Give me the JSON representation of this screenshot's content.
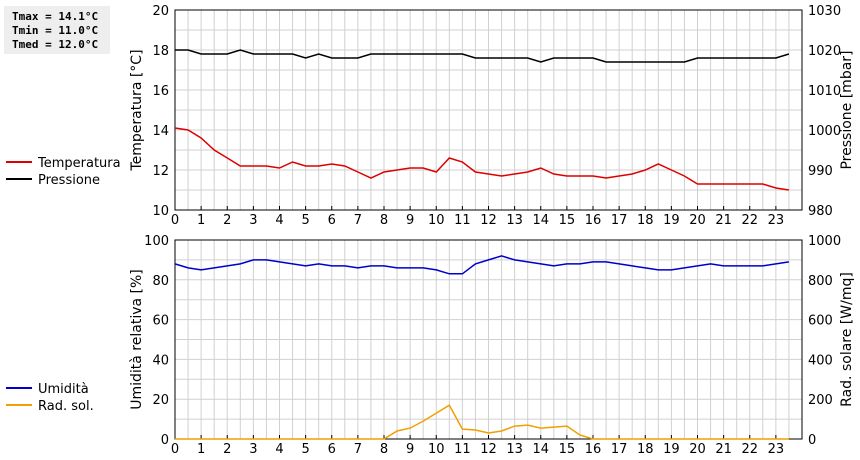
{
  "stats": {
    "tmax": "Tmax = 14.1°C",
    "tmin": "Tmin = 11.0°C",
    "tmed": "Tmed = 12.0°C"
  },
  "colors": {
    "temperature": "#dd0000",
    "pressure": "#000000",
    "humidity": "#0000cc",
    "radiation": "#f0a000",
    "grid": "#d0d0d0"
  },
  "chart_data": [
    {
      "type": "line",
      "xlim": [
        0,
        24
      ],
      "xticks": [
        "0",
        "1",
        "2",
        "3",
        "4",
        "5",
        "6",
        "7",
        "8",
        "9",
        "10",
        "11",
        "12",
        "13",
        "14",
        "15",
        "16",
        "17",
        "18",
        "19",
        "20",
        "21",
        "22",
        "23"
      ],
      "grid": true,
      "legend_position": "left",
      "ylabel": "Temperatura [°C]",
      "ylim": [
        10,
        20
      ],
      "yticks": [
        "10",
        "12",
        "14",
        "16",
        "18",
        "20"
      ],
      "y2label": "Pressione [mbar]",
      "y2lim": [
        980,
        1030
      ],
      "y2ticks": [
        "980",
        "990",
        "1000",
        "1010",
        "1020",
        "1030"
      ],
      "series": [
        {
          "name": "Temperatura",
          "axis": "left",
          "color": "#dd0000",
          "x": [
            0,
            0.5,
            1,
            1.5,
            2,
            2.5,
            3,
            3.5,
            4,
            4.5,
            5,
            5.5,
            6,
            6.5,
            7,
            7.5,
            8,
            8.5,
            9,
            9.5,
            10,
            10.5,
            11,
            11.5,
            12,
            12.5,
            13,
            13.5,
            14,
            14.5,
            15,
            15.5,
            16,
            16.5,
            17,
            17.5,
            18,
            18.5,
            19,
            19.5,
            20,
            20.5,
            21,
            21.5,
            22,
            22.5,
            23,
            23.5
          ],
          "values": [
            14.1,
            14.0,
            13.6,
            13.0,
            12.6,
            12.2,
            12.2,
            12.2,
            12.1,
            12.4,
            12.2,
            12.2,
            12.3,
            12.2,
            11.9,
            11.6,
            11.9,
            12.0,
            12.1,
            12.1,
            11.9,
            12.6,
            12.4,
            11.9,
            11.8,
            11.7,
            11.8,
            11.9,
            12.1,
            11.8,
            11.7,
            11.7,
            11.7,
            11.6,
            11.7,
            11.8,
            12.0,
            12.3,
            12.0,
            11.7,
            11.3,
            11.3,
            11.3,
            11.3,
            11.3,
            11.3,
            11.1,
            11.0
          ]
        },
        {
          "name": "Pressione",
          "axis": "right",
          "color": "#000000",
          "x": [
            0,
            0.5,
            1,
            1.5,
            2,
            2.5,
            3,
            3.5,
            4,
            4.5,
            5,
            5.5,
            6,
            6.5,
            7,
            7.5,
            8,
            8.5,
            9,
            9.5,
            10,
            10.5,
            11,
            11.5,
            12,
            12.5,
            13,
            13.5,
            14,
            14.5,
            15,
            15.5,
            16,
            16.5,
            17,
            17.5,
            18,
            18.5,
            19,
            19.5,
            20,
            20.5,
            21,
            21.5,
            22,
            22.5,
            23,
            23.5
          ],
          "values": [
            1020,
            1020,
            1019,
            1019,
            1019,
            1020,
            1019,
            1019,
            1019,
            1019,
            1018,
            1019,
            1018,
            1018,
            1018,
            1019,
            1019,
            1019,
            1019,
            1019,
            1019,
            1019,
            1019,
            1018,
            1018,
            1018,
            1018,
            1018,
            1017,
            1018,
            1018,
            1018,
            1018,
            1017,
            1017,
            1017,
            1017,
            1017,
            1017,
            1017,
            1018,
            1018,
            1018,
            1018,
            1018,
            1018,
            1018,
            1019
          ]
        }
      ]
    },
    {
      "type": "line",
      "xlim": [
        0,
        24
      ],
      "xticks": [
        "0",
        "1",
        "2",
        "3",
        "4",
        "5",
        "6",
        "7",
        "8",
        "9",
        "10",
        "11",
        "12",
        "13",
        "14",
        "15",
        "16",
        "17",
        "18",
        "19",
        "20",
        "21",
        "22",
        "23"
      ],
      "grid": true,
      "legend_position": "left",
      "ylabel": "Umidità relativa [%]",
      "ylim": [
        0,
        100
      ],
      "yticks": [
        "0",
        "20",
        "40",
        "60",
        "80",
        "100"
      ],
      "y2label": "Rad. solare [W/mq]",
      "y2lim": [
        0,
        1000
      ],
      "y2ticks": [
        "0",
        "200",
        "400",
        "600",
        "800",
        "1000"
      ],
      "series": [
        {
          "name": "Umidità",
          "axis": "left",
          "color": "#0000cc",
          "x": [
            0,
            0.5,
            1,
            1.5,
            2,
            2.5,
            3,
            3.5,
            4,
            4.5,
            5,
            5.5,
            6,
            6.5,
            7,
            7.5,
            8,
            8.5,
            9,
            9.5,
            10,
            10.5,
            11,
            11.5,
            12,
            12.5,
            13,
            13.5,
            14,
            14.5,
            15,
            15.5,
            16,
            16.5,
            17,
            17.5,
            18,
            18.5,
            19,
            19.5,
            20,
            20.5,
            21,
            21.5,
            22,
            22.5,
            23,
            23.5
          ],
          "values": [
            88,
            86,
            85,
            86,
            87,
            88,
            90,
            90,
            89,
            88,
            87,
            88,
            87,
            87,
            86,
            87,
            87,
            86,
            86,
            86,
            85,
            83,
            83,
            88,
            90,
            92,
            90,
            89,
            88,
            87,
            88,
            88,
            89,
            89,
            88,
            87,
            86,
            85,
            85,
            86,
            87,
            88,
            87,
            87,
            87,
            87,
            88,
            89
          ]
        },
        {
          "name": "Rad. sol.",
          "axis": "right",
          "color": "#f0a000",
          "x": [
            0,
            0.5,
            1,
            1.5,
            2,
            2.5,
            3,
            3.5,
            4,
            4.5,
            5,
            5.5,
            6,
            6.5,
            7,
            7.5,
            8,
            8.5,
            9,
            9.5,
            10,
            10.5,
            11,
            11.5,
            12,
            12.5,
            13,
            13.5,
            14,
            14.5,
            15,
            15.5,
            16,
            16.5,
            17,
            17.5,
            18,
            18.5,
            19,
            19.5,
            20,
            20.5,
            21,
            21.5,
            22,
            22.5,
            23,
            23.5
          ],
          "values": [
            0,
            0,
            0,
            0,
            0,
            0,
            0,
            0,
            0,
            0,
            0,
            0,
            0,
            0,
            0,
            0,
            0,
            40,
            55,
            90,
            130,
            170,
            50,
            45,
            30,
            40,
            65,
            70,
            55,
            60,
            65,
            20,
            0,
            0,
            0,
            0,
            0,
            0,
            0,
            0,
            0,
            0,
            0,
            0,
            0,
            0,
            0,
            0
          ]
        }
      ]
    }
  ]
}
